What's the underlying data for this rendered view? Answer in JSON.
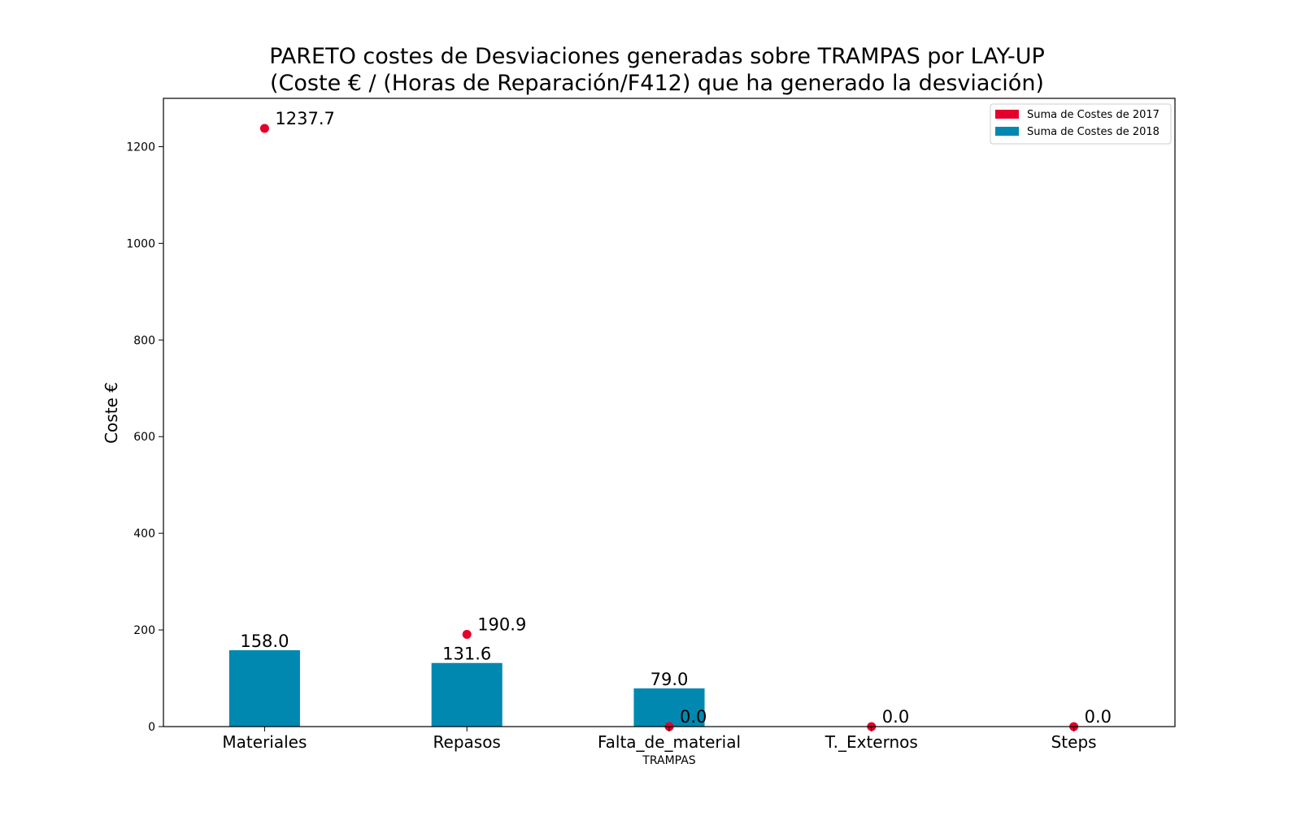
{
  "chart_data": {
    "type": "bar",
    "title_line1": "PARETO costes de Desviaciones  generadas  sobre TRAMPAS por LAY-UP",
    "title_line2": "(Coste € / (Horas de Reparación/F412) que ha generado la desviación)",
    "xlabel": "TRAMPAS",
    "ylabel": "Coste €",
    "categories": [
      "Materiales",
      "Repasos",
      "Falta_de_material",
      "T._Externos",
      "Steps"
    ],
    "ylim": [
      0,
      1300
    ],
    "yticks": [
      0,
      200,
      400,
      600,
      800,
      1000,
      1200
    ],
    "grid": false,
    "legend_position": "top-right",
    "series": [
      {
        "name": "Suma de Costes de 2017",
        "mark": "point",
        "color": "#e3002b",
        "values": [
          1237.7,
          190.9,
          0.0,
          0.0,
          0.0
        ],
        "labels": [
          "1237.7",
          "190.9",
          "0.0",
          "0.0",
          "0.0"
        ]
      },
      {
        "name": "Suma de Costes de 2018",
        "mark": "bar",
        "color": "#0088b0",
        "values": [
          158.0,
          131.6,
          79.0,
          0.0,
          0.0
        ],
        "labels": [
          "158.0",
          "131.6",
          "79.0",
          "",
          ""
        ]
      }
    ]
  }
}
